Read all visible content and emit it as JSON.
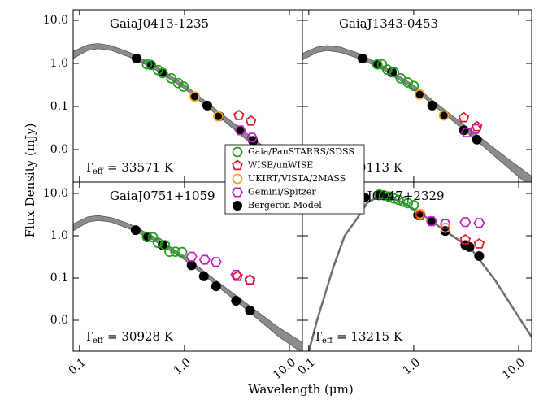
{
  "figure": {
    "xlabel": "Wavelength (μm)",
    "ylabel": "Flux Density (mJy)"
  },
  "chart_data": [
    {
      "type": "scatter",
      "title": "GaiaJ0413-1235",
      "annotation": {
        "symbol": "T",
        "subscript": "eff",
        "text": "= 33571 K"
      },
      "xscale": "log",
      "yscale": "log",
      "xlim": [
        0.087,
        13.3
      ],
      "ylim": [
        0.00176,
        17.6
      ],
      "xticks": [
        0.1,
        {
          "value": 1,
          "label": "1.0"
        },
        {
          "value": 10,
          "label": "10.0"
        }
      ],
      "yticks": [
        {
          "value": 10,
          "label": "10.0"
        },
        {
          "value": 1,
          "label": "1.0"
        },
        0.1,
        {
          "value": 0.01,
          "label": "0.0"
        }
      ],
      "xticklabels": false,
      "yticklabels": true,
      "legend": "lower right",
      "band": {
        "color": "#8c8c8c",
        "x": [
          0.087,
          0.12,
          0.15,
          0.2,
          0.3,
          0.5,
          1,
          2,
          4,
          8,
          13.3
        ],
        "high": [
          1.9,
          2.7,
          2.9,
          2.6,
          1.8,
          0.95,
          0.32,
          0.085,
          0.023,
          0.0062,
          0.0025
        ],
        "low": [
          1.3,
          2.0,
          2.2,
          2.0,
          1.4,
          0.78,
          0.26,
          0.066,
          0.016,
          0.0038,
          0.0013
        ]
      },
      "series": [
        {
          "name": "Gaia/PanSTARRS/SDSS",
          "color": "#1f9e1f",
          "marker": "circle-open",
          "x": [
            0.44,
            0.48,
            0.56,
            0.62,
            0.75,
            0.87,
            0.98
          ],
          "values": [
            0.95,
            0.92,
            0.7,
            0.6,
            0.45,
            0.35,
            0.29
          ]
        },
        {
          "name": "WISE/unWISE",
          "color": "#e0142a",
          "marker": "pentagon",
          "x": [
            3.3,
            4.3
          ],
          "values": [
            0.062,
            0.046
          ]
        },
        {
          "name": "UKIRT/VISTA/2MASS",
          "color": "#f5a31a",
          "marker": "circle-open",
          "x": [
            1.25,
            2.1
          ],
          "values": [
            0.17,
            0.059
          ]
        },
        {
          "name": "Gemini/Spitzer",
          "color": "#c21fc2",
          "marker": "hexagon",
          "x": [
            3.4,
            4.4
          ],
          "values": [
            0.028,
            0.019
          ]
        },
        {
          "name": "Bergeron Model",
          "color": "#000000",
          "marker": "circle",
          "x": [
            0.35,
            0.48,
            0.62,
            1.25,
            1.65,
            2.15,
            3.4,
            4.5
          ],
          "values": [
            1.3,
            0.92,
            0.6,
            0.17,
            0.105,
            0.059,
            0.028,
            0.016
          ]
        }
      ]
    },
    {
      "type": "scatter",
      "title": "GaiaJ1343-0453",
      "annotation": {
        "symbol": "T",
        "subscript": "eff",
        "text": "= 30113 K"
      },
      "xscale": "log",
      "yscale": "log",
      "xlim": [
        0.087,
        13.3
      ],
      "ylim": [
        0.00176,
        17.6
      ],
      "xticks": [
        0.1,
        {
          "value": 1,
          "label": "1.0"
        },
        {
          "value": 10,
          "label": "10.0"
        }
      ],
      "yticks": [
        {
          "value": 10,
          "label": "10.0"
        },
        {
          "value": 1,
          "label": "1.0"
        },
        0.1,
        {
          "value": 0.01,
          "label": "0.0"
        }
      ],
      "xticklabels": false,
      "yticklabels": false,
      "band": {
        "color": "#8c8c8c",
        "x": [
          0.087,
          0.12,
          0.15,
          0.2,
          0.3,
          0.5,
          1,
          2,
          4,
          8,
          13.3
        ],
        "high": [
          1.7,
          2.4,
          2.6,
          2.4,
          1.7,
          0.9,
          0.31,
          0.082,
          0.022,
          0.006,
          0.0024
        ],
        "low": [
          1.2,
          1.8,
          2.0,
          1.8,
          1.3,
          0.74,
          0.25,
          0.064,
          0.016,
          0.0037,
          0.0013
        ]
      },
      "series": [
        {
          "name": "Gaia/PanSTARRS/SDSS",
          "color": "#1f9e1f",
          "marker": "circle-open",
          "x": [
            0.45,
            0.5,
            0.56,
            0.65,
            0.75,
            0.88,
            1.0
          ],
          "values": [
            0.95,
            0.95,
            0.72,
            0.62,
            0.45,
            0.36,
            0.3
          ]
        },
        {
          "name": "WISE/unWISE",
          "color": "#e0142a",
          "marker": "pentagon",
          "x": [
            3.0,
            4.0
          ],
          "values": [
            0.055,
            0.034
          ]
        },
        {
          "name": "UKIRT/VISTA/2MASS",
          "color": "#f5a31a",
          "marker": "circle-open",
          "x": [
            1.14,
            1.94
          ],
          "values": [
            0.19,
            0.062
          ]
        },
        {
          "name": "Gemini/Spitzer",
          "color": "#c21fc2",
          "marker": "hexagon",
          "x": [
            3.2,
            3.9
          ],
          "values": [
            0.025,
            0.03
          ]
        },
        {
          "name": "Bergeron Model",
          "color": "#000000",
          "marker": "circle",
          "x": [
            0.325,
            0.45,
            0.62,
            1.14,
            1.5,
            1.94,
            3.0,
            4.0
          ],
          "values": [
            1.3,
            0.95,
            0.62,
            0.19,
            0.105,
            0.062,
            0.028,
            0.017
          ]
        }
      ]
    },
    {
      "type": "scatter",
      "title": "GaiaJ0751+1059",
      "annotation": {
        "symbol": "T",
        "subscript": "eff",
        "text": "= 30928 K"
      },
      "xscale": "log",
      "yscale": "log",
      "xlim": [
        0.087,
        13.3
      ],
      "ylim": [
        0.00186,
        18.6
      ],
      "xticks": [
        0.1,
        {
          "value": 1,
          "label": "1.0"
        },
        {
          "value": 10,
          "label": "10.0"
        }
      ],
      "yticks": [
        {
          "value": 10,
          "label": "10.0"
        },
        {
          "value": 1,
          "label": "1.0"
        },
        0.1,
        {
          "value": 0.01,
          "label": "0.0"
        }
      ],
      "xticklabels": true,
      "yticklabels": true,
      "band": {
        "color": "#8c8c8c",
        "x": [
          0.087,
          0.12,
          0.15,
          0.2,
          0.3,
          0.5,
          1,
          2,
          4,
          8,
          13.3
        ],
        "high": [
          1.9,
          2.8,
          3.0,
          2.7,
          1.9,
          0.98,
          0.33,
          0.088,
          0.024,
          0.0066,
          0.003
        ],
        "low": [
          1.3,
          2.1,
          2.3,
          2.1,
          1.45,
          0.8,
          0.27,
          0.068,
          0.017,
          0.004,
          0.0017
        ]
      },
      "series": [
        {
          "name": "Gaia/PanSTARRS/SDSS",
          "color": "#1f9e1f",
          "marker": "circle-open",
          "x": [
            0.44,
            0.5,
            0.56,
            0.65,
            0.72,
            0.82,
            0.95
          ],
          "values": [
            0.95,
            0.92,
            0.68,
            0.6,
            0.42,
            0.42,
            0.41
          ]
        },
        {
          "name": "WISE/unWISE",
          "color": "#e0142a",
          "marker": "pentagon",
          "x": [
            3.2,
            4.2
          ],
          "values": [
            0.11,
            0.09
          ]
        },
        {
          "name": "Gemini/Spitzer",
          "color": "#c21fc2",
          "marker": "hexagon",
          "x": [
            1.17,
            1.56,
            2.0,
            3.1,
            4.2
          ],
          "values": [
            0.32,
            0.27,
            0.24,
            0.12,
            0.088
          ]
        },
        {
          "name": "Bergeron Model",
          "color": "#000000",
          "marker": "circle",
          "x": [
            0.343,
            0.44,
            0.62,
            1.17,
            1.53,
            2.0,
            3.1,
            4.2
          ],
          "values": [
            1.36,
            0.92,
            0.6,
            0.2,
            0.11,
            0.064,
            0.029,
            0.017
          ]
        }
      ]
    },
    {
      "type": "scatter",
      "title": "GaiaJ0147+2329",
      "annotation": {
        "symbol": "T",
        "subscript": "eff",
        "text": "= 13215 K"
      },
      "xscale": "log",
      "yscale": "log",
      "xlim": [
        0.087,
        13.3
      ],
      "ylim": [
        0.00186,
        18.6
      ],
      "xticks": [
        0.1,
        {
          "value": 1,
          "label": "1.0"
        },
        {
          "value": 10,
          "label": "10.0"
        }
      ],
      "yticks": [
        {
          "value": 10,
          "label": "10.0"
        },
        {
          "value": 1,
          "label": "1.0"
        },
        0.1,
        {
          "value": 0.01,
          "label": "0.0"
        }
      ],
      "xticklabels": true,
      "yticklabels": false,
      "band": {
        "color": "#6e6e6e",
        "x": [
          0.1,
          0.12,
          0.17,
          0.22,
          0.29,
          0.36,
          0.5,
          0.8,
          1.2,
          2,
          3.5,
          6,
          10,
          13.3
        ],
        "values": [
          0.0018,
          0.01,
          0.17,
          1.0,
          2.6,
          6,
          9.5,
          6,
          3.2,
          1.3,
          0.5,
          0.087,
          0.012,
          0.004
        ]
      },
      "series": [
        {
          "name": "Gaia/PanSTARRS/SDSS",
          "color": "#1f9e1f",
          "marker": "circle-open",
          "x": [
            0.47,
            0.52,
            0.58,
            0.65,
            0.72,
            0.8,
            0.88,
            1.0
          ],
          "values": [
            9.5,
            9.0,
            8.5,
            7.6,
            7.0,
            6.4,
            5.9,
            5.3
          ]
        },
        {
          "name": "WISE/unWISE",
          "color": "#e0142a",
          "marker": "pentagon",
          "x": [
            1.15,
            3.1,
            4.2
          ],
          "values": [
            3.0,
            0.8,
            0.64
          ]
        },
        {
          "name": "UKIRT/VISTA/2MASS",
          "color": "#f5a31a",
          "marker": "circle-open",
          "x": [
            1.15,
            2.0
          ],
          "values": [
            3.3,
            1.55
          ]
        },
        {
          "name": "Gemini/Spitzer",
          "color": "#c21fc2",
          "marker": "hexagon",
          "x": [
            1.48,
            2.0,
            3.1,
            4.2
          ],
          "values": [
            2.2,
            1.9,
            2.1,
            2.0
          ]
        },
        {
          "name": "Bergeron Model",
          "color": "#000000",
          "marker": "circle",
          "x": [
            0.34,
            0.47,
            0.58,
            1.1,
            1.48,
            2.0,
            3.1,
            3.4,
            4.2
          ],
          "values": [
            8.0,
            9.0,
            8.3,
            3.1,
            2.2,
            1.3,
            0.6,
            0.54,
            0.33
          ]
        }
      ]
    }
  ]
}
